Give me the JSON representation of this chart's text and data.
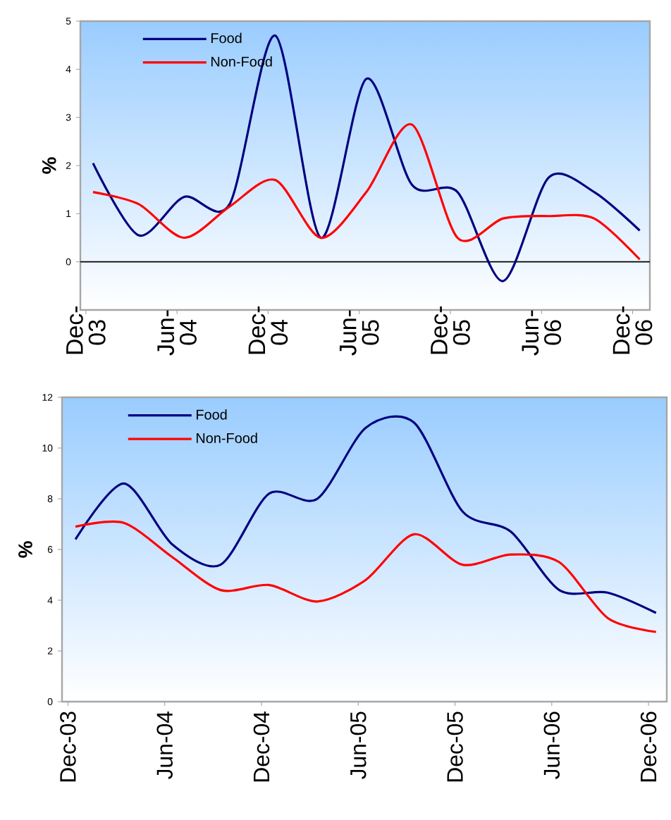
{
  "chart_data": [
    {
      "type": "line",
      "ylabel": "%",
      "ylim": [
        -1,
        5
      ],
      "yticks": [
        0,
        1,
        2,
        3,
        4,
        5
      ],
      "xlim": [
        "2003-11-20",
        "2007-01-05"
      ],
      "xticks": [
        {
          "value": "2003-12-01",
          "label": "Dec-03"
        },
        {
          "value": "2004-06-01",
          "label": "Jun-04"
        },
        {
          "value": "2004-12-01",
          "label": "Dec-04"
        },
        {
          "value": "2005-06-01",
          "label": "Jun-05"
        },
        {
          "value": "2005-12-01",
          "label": "Dec-05"
        },
        {
          "value": "2006-06-01",
          "label": "Jun-06"
        },
        {
          "value": "2006-12-01",
          "label": "Dec-06"
        }
      ],
      "x": [
        "2003-12-15",
        "2004-03-15",
        "2004-06-15",
        "2004-09-15",
        "2004-12-15",
        "2005-03-15",
        "2005-06-15",
        "2005-09-15",
        "2005-12-15",
        "2006-03-15",
        "2006-06-15",
        "2006-09-15",
        "2006-12-15"
      ],
      "legend": "top left",
      "grid": false,
      "ref_lines": [
        {
          "axis": "y",
          "value": 0,
          "color": "#000000"
        }
      ],
      "series": [
        {
          "name": "Food",
          "color": "#000080",
          "values": [
            2.05,
            0.55,
            1.35,
            1.2,
            4.7,
            0.5,
            3.8,
            1.6,
            1.45,
            -0.4,
            1.75,
            1.45,
            0.65
          ]
        },
        {
          "name": "Non-Food",
          "color": "#ff0000",
          "values": [
            1.45,
            1.2,
            0.5,
            1.15,
            1.7,
            0.5,
            1.45,
            2.85,
            0.5,
            0.9,
            0.95,
            0.9,
            0.05
          ]
        }
      ]
    },
    {
      "type": "line",
      "ylabel": "%",
      "ylim": [
        0,
        12
      ],
      "yticks": [
        0,
        2,
        4,
        6,
        8,
        10,
        12
      ],
      "xlim": [
        "2003-11-20",
        "2007-01-05"
      ],
      "xticks": [
        {
          "value": "2003-12-01",
          "label": "Dec-03"
        },
        {
          "value": "2004-06-01",
          "label": "Jun-04"
        },
        {
          "value": "2004-12-01",
          "label": "Dec-04"
        },
        {
          "value": "2005-06-01",
          "label": "Jun-05"
        },
        {
          "value": "2005-12-01",
          "label": "Dec-05"
        },
        {
          "value": "2006-06-01",
          "label": "Jun-06"
        },
        {
          "value": "2006-12-01",
          "label": "Dec-06"
        }
      ],
      "x": [
        "2003-12-15",
        "2004-03-15",
        "2004-06-15",
        "2004-09-15",
        "2004-12-15",
        "2005-03-15",
        "2005-06-15",
        "2005-09-15",
        "2005-12-15",
        "2006-03-15",
        "2006-06-15",
        "2006-09-15",
        "2006-12-15"
      ],
      "legend": "top left",
      "grid": false,
      "series": [
        {
          "name": "Food",
          "color": "#000080",
          "values": [
            6.4,
            8.6,
            6.2,
            5.4,
            8.2,
            8.0,
            10.8,
            11.0,
            7.5,
            6.7,
            4.4,
            4.3,
            3.5
          ]
        },
        {
          "name": "Non-Food",
          "color": "#ff0000",
          "values": [
            6.9,
            7.05,
            5.7,
            4.4,
            4.6,
            3.95,
            4.8,
            6.6,
            5.4,
            5.8,
            5.5,
            3.3,
            2.75
          ]
        }
      ]
    }
  ]
}
